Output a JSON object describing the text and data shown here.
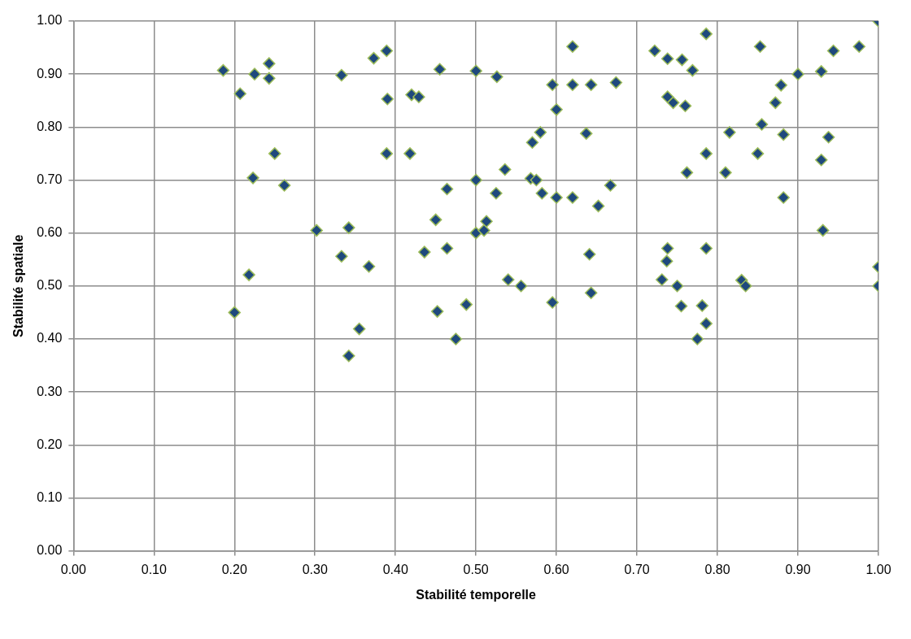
{
  "chart_data": {
    "type": "scatter",
    "xlabel": "Stabilité temporelle",
    "ylabel": "Stabilité spatiale",
    "marker": "diamond",
    "grid": true,
    "legend": false,
    "xlim": [
      0,
      1
    ],
    "ylim": [
      0,
      1
    ],
    "xticks": [
      {
        "value": 0,
        "label": "0.00"
      },
      {
        "value": 0.1,
        "label": "0.10"
      },
      {
        "value": 0.2,
        "label": "0.20"
      },
      {
        "value": 0.3,
        "label": "0.30"
      },
      {
        "value": 0.4,
        "label": "0.40"
      },
      {
        "value": 0.5,
        "label": "0.50"
      },
      {
        "value": 0.6,
        "label": "0.60"
      },
      {
        "value": 0.7,
        "label": "0.70"
      },
      {
        "value": 0.8,
        "label": "0.80"
      },
      {
        "value": 0.9,
        "label": "0.90"
      },
      {
        "value": 1,
        "label": "1.00"
      }
    ],
    "yticks": [
      {
        "value": 0,
        "label": "0.00"
      },
      {
        "value": 0.1,
        "label": "0.10"
      },
      {
        "value": 0.2,
        "label": "0.20"
      },
      {
        "value": 0.3,
        "label": "0.30"
      },
      {
        "value": 0.4,
        "label": "0.40"
      },
      {
        "value": 0.5,
        "label": "0.50"
      },
      {
        "value": 0.6,
        "label": "0.60"
      },
      {
        "value": 0.7,
        "label": "0.70"
      },
      {
        "value": 0.8,
        "label": "0.80"
      },
      {
        "value": 0.9,
        "label": "0.90"
      },
      {
        "value": 1,
        "label": "1.00"
      }
    ],
    "series": [
      {
        "color": "#1f497d",
        "x": [
          0.186,
          0.207,
          0.225,
          0.243,
          0.243,
          0.223,
          0.25,
          0.262,
          0.218,
          0.2,
          0.302,
          0.333,
          0.333,
          0.342,
          0.342,
          0.355,
          0.367,
          0.373,
          0.389,
          0.39,
          0.389,
          0.418,
          0.42,
          0.429,
          0.436,
          0.455,
          0.45,
          0.452,
          0.464,
          0.464,
          0.475,
          0.488,
          0.5,
          0.5,
          0.5,
          0.51,
          0.513,
          0.526,
          0.525,
          0.536,
          0.54,
          0.556,
          0.57,
          0.568,
          0.575,
          0.58,
          0.582,
          0.595,
          0.6,
          0.6,
          0.595,
          0.62,
          0.62,
          0.62,
          0.637,
          0.643,
          0.641,
          0.643,
          0.652,
          0.667,
          0.674,
          0.722,
          0.738,
          0.738,
          0.745,
          0.756,
          0.769,
          0.76,
          0.762,
          0.738,
          0.737,
          0.731,
          0.75,
          0.755,
          0.781,
          0.775,
          0.786,
          0.786,
          0.786,
          0.786,
          0.81,
          0.815,
          0.853,
          0.855,
          0.85,
          0.83,
          0.835,
          0.872,
          0.879,
          0.882,
          0.882,
          0.9,
          0.929,
          0.929,
          0.931,
          0.938,
          0.944,
          0.976,
          1.0,
          1.0,
          1.0
        ],
        "values": [
          0.907,
          0.863,
          0.9,
          0.92,
          0.892,
          0.704,
          0.75,
          0.69,
          0.521,
          0.45,
          0.605,
          0.898,
          0.556,
          0.61,
          0.368,
          0.419,
          0.537,
          0.93,
          0.944,
          0.853,
          0.75,
          0.75,
          0.861,
          0.857,
          0.564,
          0.909,
          0.625,
          0.452,
          0.683,
          0.571,
          0.4,
          0.465,
          0.906,
          0.7,
          0.6,
          0.605,
          0.622,
          0.895,
          0.675,
          0.72,
          0.512,
          0.5,
          0.771,
          0.703,
          0.7,
          0.79,
          0.675,
          0.88,
          0.833,
          0.667,
          0.469,
          0.952,
          0.88,
          0.667,
          0.788,
          0.88,
          0.56,
          0.487,
          0.651,
          0.69,
          0.884,
          0.944,
          0.929,
          0.857,
          0.846,
          0.927,
          0.907,
          0.84,
          0.714,
          0.571,
          0.547,
          0.512,
          0.5,
          0.462,
          0.463,
          0.4,
          0.429,
          0.976,
          0.75,
          0.571,
          0.714,
          0.79,
          0.952,
          0.805,
          0.75,
          0.511,
          0.5,
          0.846,
          0.879,
          0.786,
          0.667,
          0.9,
          0.905,
          0.738,
          0.605,
          0.781,
          0.944,
          0.952,
          1.0,
          0.536,
          0.5
        ]
      }
    ]
  }
}
